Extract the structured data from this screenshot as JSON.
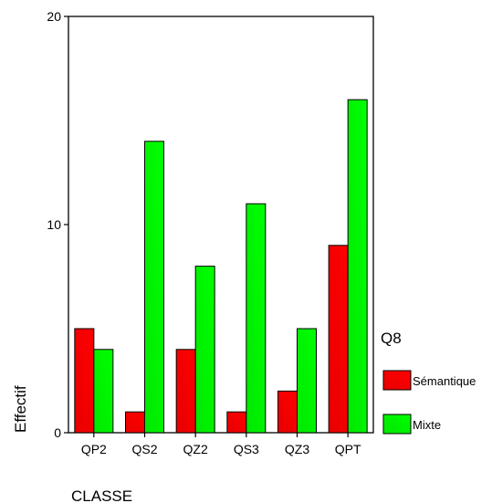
{
  "chart_data": {
    "type": "bar",
    "categories": [
      "QP2",
      "QS2",
      "QZ2",
      "QS3",
      "QZ3",
      "QPT"
    ],
    "series": [
      {
        "name": "Sémantique",
        "values": [
          5,
          1,
          4,
          1,
          2,
          9
        ],
        "color": "#ff0000"
      },
      {
        "name": "Mixte",
        "values": [
          4,
          14,
          8,
          11,
          5,
          16
        ],
        "color": "#00ff00"
      }
    ],
    "ylim": [
      0,
      20
    ],
    "yticks": [
      0,
      10,
      20
    ],
    "xlabel": "CLASSE",
    "ylabel": "Effectif",
    "legend_title": "Q8",
    "legend_position": "right",
    "grid": false
  }
}
